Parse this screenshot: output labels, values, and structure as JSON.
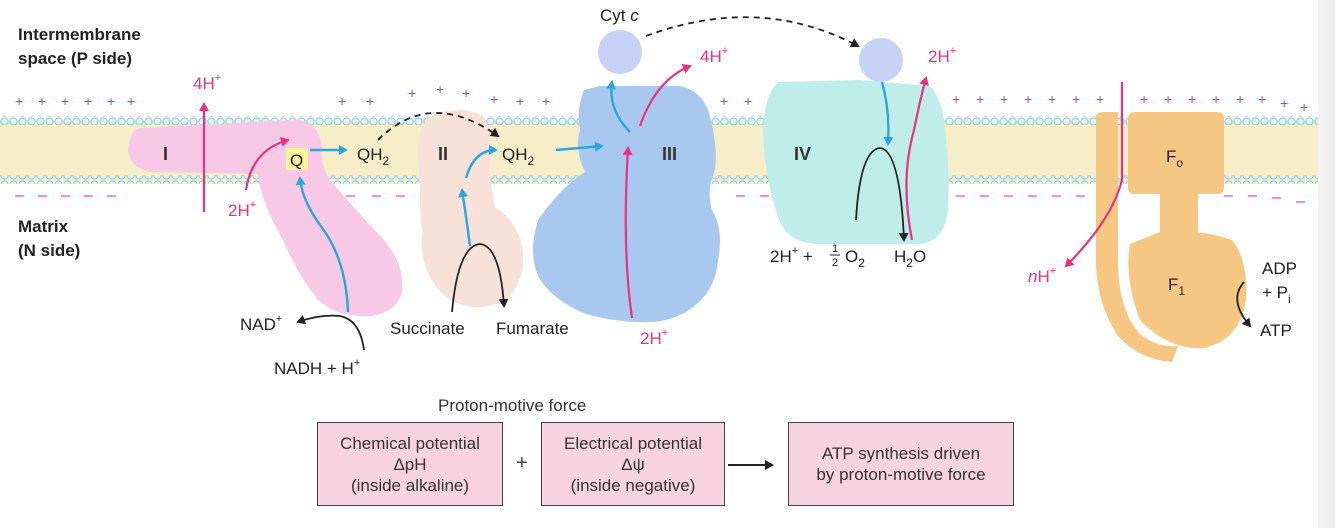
{
  "regions": {
    "p_side_line1": "Intermembrane",
    "p_side_line2": "space (P side)",
    "n_side_line1": "Matrix",
    "n_side_line2": "(N side)"
  },
  "complexes": {
    "c1": "I",
    "c2": "II",
    "c3": "III",
    "c4": "IV",
    "fo": "F",
    "fo_sub": "o",
    "f1": "F",
    "f1_sub": "1"
  },
  "molecules": {
    "cytc": "Cyt ",
    "cytc_italic": "c",
    "q": "Q",
    "qh2": "QH",
    "sub2": "2",
    "nad": "NAD",
    "nadh": "NADH + H",
    "succinate": "Succinate",
    "fumarate": "Fumarate",
    "h2o_h": "H",
    "h2o_o": "O",
    "oxygen_prefix": "2H",
    "oxygen_plus": "+",
    "half_num": "1",
    "half_den": "2",
    "o2": "O",
    "adp": "ADP",
    "pi_plus": "+ P",
    "pi_sub": "i",
    "atp": "ATP"
  },
  "protons": {
    "h4": "4H",
    "h2": "2H",
    "nh_italic": "n",
    "nh": "H",
    "sup_plus": "+"
  },
  "pmf": {
    "title": "Proton-motive force",
    "chem_line1": "Chemical potential",
    "chem_line2": "ΔpH",
    "chem_line3": "(inside alkaline)",
    "plus_sign": "+",
    "elec_line1": "Electrical potential",
    "elec_line2": "Δψ",
    "elec_line3": "(inside negative)",
    "result_line1": "ATP synthesis driven",
    "result_line2": "by proton-motive force"
  },
  "colors": {
    "membrane": "#f6eec8",
    "proton_arrow": "#e5337f",
    "electron_arrow": "#2aa6dd",
    "complex1": "#f7c9e6",
    "complex2": "#f8e1d8",
    "complex3": "#a9c8f0",
    "complex4": "#bfeeea",
    "atp_synthase": "#f6c782",
    "quinone_highlight": "#fbf3a0",
    "pmf_box": "#f7d3df"
  }
}
